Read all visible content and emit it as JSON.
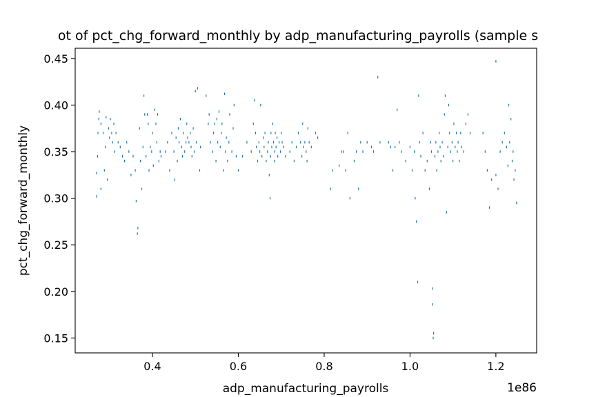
{
  "chart_data": {
    "type": "scatter",
    "title": "ot of pct_chg_forward_monthly by adp_manufacturing_payrolls (sample s",
    "xlabel": "adp_manufacturing_payrolls",
    "ylabel": "pct_chg_forward_monthly",
    "x_offset_label": "1e86",
    "xlim": [
      0.22,
      1.295
    ],
    "ylim": [
      0.134,
      0.461
    ],
    "x_ticks": [
      0.4,
      0.6,
      0.8,
      1.0,
      1.2
    ],
    "x_tick_labels": [
      "0.4",
      "0.6",
      "0.8",
      "1.0",
      "1.2"
    ],
    "y_ticks": [
      0.15,
      0.2,
      0.25,
      0.3,
      0.35,
      0.4,
      0.45
    ],
    "y_tick_labels": [
      "0.15",
      "0.20",
      "0.25",
      "0.30",
      "0.35",
      "0.40",
      "0.45"
    ],
    "grid": false,
    "marker_color": "#1f77b4",
    "series": [
      {
        "points": [
          [
            0.27,
            0.302
          ],
          [
            0.27,
            0.327
          ],
          [
            0.272,
            0.345
          ],
          [
            0.273,
            0.37
          ],
          [
            0.275,
            0.385
          ],
          [
            0.276,
            0.393
          ],
          [
            0.28,
            0.31
          ],
          [
            0.28,
            0.38
          ],
          [
            0.285,
            0.37
          ],
          [
            0.288,
            0.33
          ],
          [
            0.29,
            0.355
          ],
          [
            0.292,
            0.387
          ],
          [
            0.295,
            0.32
          ],
          [
            0.298,
            0.375
          ],
          [
            0.3,
            0.365
          ],
          [
            0.302,
            0.385
          ],
          [
            0.305,
            0.37
          ],
          [
            0.307,
            0.36
          ],
          [
            0.31,
            0.38
          ],
          [
            0.312,
            0.35
          ],
          [
            0.315,
            0.37
          ],
          [
            0.32,
            0.36
          ],
          [
            0.325,
            0.355
          ],
          [
            0.33,
            0.345
          ],
          [
            0.335,
            0.34
          ],
          [
            0.34,
            0.36
          ],
          [
            0.345,
            0.35
          ],
          [
            0.35,
            0.325
          ],
          [
            0.355,
            0.345
          ],
          [
            0.36,
            0.33
          ],
          [
            0.362,
            0.297
          ],
          [
            0.365,
            0.262
          ],
          [
            0.366,
            0.268
          ],
          [
            0.37,
            0.375
          ],
          [
            0.372,
            0.34
          ],
          [
            0.375,
            0.31
          ],
          [
            0.378,
            0.355
          ],
          [
            0.38,
            0.41
          ],
          [
            0.382,
            0.39
          ],
          [
            0.385,
            0.345
          ],
          [
            0.388,
            0.39
          ],
          [
            0.39,
            0.38
          ],
          [
            0.392,
            0.33
          ],
          [
            0.395,
            0.355
          ],
          [
            0.398,
            0.35
          ],
          [
            0.4,
            0.37
          ],
          [
            0.402,
            0.335
          ],
          [
            0.405,
            0.395
          ],
          [
            0.408,
            0.38
          ],
          [
            0.41,
            0.36
          ],
          [
            0.412,
            0.39
          ],
          [
            0.415,
            0.34
          ],
          [
            0.418,
            0.35
          ],
          [
            0.42,
            0.345
          ],
          [
            0.43,
            0.35
          ],
          [
            0.435,
            0.36
          ],
          [
            0.44,
            0.33
          ],
          [
            0.445,
            0.37
          ],
          [
            0.45,
            0.35
          ],
          [
            0.452,
            0.32
          ],
          [
            0.455,
            0.365
          ],
          [
            0.458,
            0.34
          ],
          [
            0.46,
            0.375
          ],
          [
            0.462,
            0.36
          ],
          [
            0.465,
            0.385
          ],
          [
            0.468,
            0.355
          ],
          [
            0.47,
            0.345
          ],
          [
            0.472,
            0.37
          ],
          [
            0.475,
            0.35
          ],
          [
            0.478,
            0.36
          ],
          [
            0.48,
            0.38
          ],
          [
            0.482,
            0.365
          ],
          [
            0.485,
            0.36
          ],
          [
            0.488,
            0.37
          ],
          [
            0.49,
            0.355
          ],
          [
            0.492,
            0.345
          ],
          [
            0.495,
            0.375
          ],
          [
            0.498,
            0.35
          ],
          [
            0.5,
            0.415
          ],
          [
            0.502,
            0.36
          ],
          [
            0.505,
            0.418
          ],
          [
            0.51,
            0.33
          ],
          [
            0.512,
            0.355
          ],
          [
            0.525,
            0.41
          ],
          [
            0.53,
            0.38
          ],
          [
            0.532,
            0.39
          ],
          [
            0.535,
            0.36
          ],
          [
            0.54,
            0.35
          ],
          [
            0.542,
            0.37
          ],
          [
            0.545,
            0.38
          ],
          [
            0.548,
            0.34
          ],
          [
            0.55,
            0.385
          ],
          [
            0.552,
            0.36
          ],
          [
            0.555,
            0.393
          ],
          [
            0.558,
            0.355
          ],
          [
            0.56,
            0.37
          ],
          [
            0.562,
            0.38
          ],
          [
            0.565,
            0.33
          ],
          [
            0.568,
            0.412
          ],
          [
            0.57,
            0.35
          ],
          [
            0.572,
            0.365
          ],
          [
            0.575,
            0.34
          ],
          [
            0.578,
            0.36
          ],
          [
            0.58,
            0.39
          ],
          [
            0.585,
            0.35
          ],
          [
            0.588,
            0.375
          ],
          [
            0.59,
            0.4
          ],
          [
            0.595,
            0.345
          ],
          [
            0.6,
            0.33
          ],
          [
            0.61,
            0.345
          ],
          [
            0.62,
            0.36
          ],
          [
            0.63,
            0.35
          ],
          [
            0.635,
            0.38
          ],
          [
            0.638,
            0.405
          ],
          [
            0.64,
            0.37
          ],
          [
            0.642,
            0.355
          ],
          [
            0.645,
            0.34
          ],
          [
            0.648,
            0.36
          ],
          [
            0.65,
            0.35
          ],
          [
            0.652,
            0.4
          ],
          [
            0.655,
            0.345
          ],
          [
            0.658,
            0.365
          ],
          [
            0.66,
            0.355
          ],
          [
            0.662,
            0.37
          ],
          [
            0.665,
            0.34
          ],
          [
            0.668,
            0.35
          ],
          [
            0.67,
            0.36
          ],
          [
            0.672,
            0.325
          ],
          [
            0.674,
            0.3
          ],
          [
            0.675,
            0.345
          ],
          [
            0.676,
            0.37
          ],
          [
            0.678,
            0.355
          ],
          [
            0.68,
            0.38
          ],
          [
            0.682,
            0.36
          ],
          [
            0.684,
            0.34
          ],
          [
            0.685,
            0.35
          ],
          [
            0.686,
            0.37
          ],
          [
            0.688,
            0.355
          ],
          [
            0.69,
            0.365
          ],
          [
            0.692,
            0.345
          ],
          [
            0.695,
            0.36
          ],
          [
            0.698,
            0.35
          ],
          [
            0.7,
            0.37
          ],
          [
            0.702,
            0.36
          ],
          [
            0.705,
            0.355
          ],
          [
            0.71,
            0.345
          ],
          [
            0.72,
            0.35
          ],
          [
            0.725,
            0.36
          ],
          [
            0.73,
            0.34
          ],
          [
            0.735,
            0.355
          ],
          [
            0.74,
            0.37
          ],
          [
            0.745,
            0.36
          ],
          [
            0.748,
            0.345
          ],
          [
            0.75,
            0.38
          ],
          [
            0.752,
            0.355
          ],
          [
            0.755,
            0.36
          ],
          [
            0.758,
            0.35
          ],
          [
            0.76,
            0.34
          ],
          [
            0.762,
            0.375
          ],
          [
            0.765,
            0.36
          ],
          [
            0.77,
            0.355
          ],
          [
            0.78,
            0.37
          ],
          [
            0.785,
            0.365
          ],
          [
            0.815,
            0.31
          ],
          [
            0.82,
            0.33
          ],
          [
            0.835,
            0.335
          ],
          [
            0.84,
            0.35
          ],
          [
            0.845,
            0.35
          ],
          [
            0.85,
            0.33
          ],
          [
            0.855,
            0.37
          ],
          [
            0.86,
            0.3
          ],
          [
            0.87,
            0.34
          ],
          [
            0.875,
            0.35
          ],
          [
            0.88,
            0.31
          ],
          [
            0.885,
            0.36
          ],
          [
            0.89,
            0.35
          ],
          [
            0.9,
            0.36
          ],
          [
            0.91,
            0.355
          ],
          [
            0.915,
            0.35
          ],
          [
            0.925,
            0.43
          ],
          [
            0.93,
            0.36
          ],
          [
            0.95,
            0.36
          ],
          [
            0.955,
            0.355
          ],
          [
            0.96,
            0.33
          ],
          [
            0.965,
            0.355
          ],
          [
            0.97,
            0.395
          ],
          [
            0.975,
            0.36
          ],
          [
            0.98,
            0.35
          ],
          [
            0.99,
            0.34
          ],
          [
            1.0,
            0.355
          ],
          [
            1.005,
            0.33
          ],
          [
            1.01,
            0.35
          ],
          [
            1.012,
            0.3
          ],
          [
            1.015,
            0.275
          ],
          [
            1.018,
            0.21
          ],
          [
            1.02,
            0.41
          ],
          [
            1.022,
            0.36
          ],
          [
            1.025,
            0.345
          ],
          [
            1.03,
            0.37
          ],
          [
            1.035,
            0.33
          ],
          [
            1.04,
            0.34
          ],
          [
            1.045,
            0.31
          ],
          [
            1.048,
            0.36
          ],
          [
            1.05,
            0.35
          ],
          [
            1.052,
            0.186
          ],
          [
            1.053,
            0.203
          ],
          [
            1.054,
            0.15
          ],
          [
            1.055,
            0.155
          ],
          [
            1.058,
            0.345
          ],
          [
            1.06,
            0.36
          ],
          [
            1.062,
            0.33
          ],
          [
            1.065,
            0.35
          ],
          [
            1.068,
            0.37
          ],
          [
            1.07,
            0.355
          ],
          [
            1.072,
            0.34
          ],
          [
            1.075,
            0.36
          ],
          [
            1.078,
            0.345
          ],
          [
            1.08,
            0.39
          ],
          [
            1.082,
            0.41
          ],
          [
            1.085,
            0.285
          ],
          [
            1.088,
            0.355
          ],
          [
            1.09,
            0.4
          ],
          [
            1.092,
            0.37
          ],
          [
            1.095,
            0.35
          ],
          [
            1.098,
            0.36
          ],
          [
            1.1,
            0.34
          ],
          [
            1.102,
            0.38
          ],
          [
            1.105,
            0.355
          ],
          [
            1.108,
            0.37
          ],
          [
            1.11,
            0.35
          ],
          [
            1.112,
            0.36
          ],
          [
            1.115,
            0.34
          ],
          [
            1.118,
            0.37
          ],
          [
            1.12,
            0.355
          ],
          [
            1.125,
            0.35
          ],
          [
            1.13,
            0.38
          ],
          [
            1.135,
            0.39
          ],
          [
            1.14,
            0.37
          ],
          [
            1.17,
            0.37
          ],
          [
            1.175,
            0.35
          ],
          [
            1.18,
            0.33
          ],
          [
            1.185,
            0.29
          ],
          [
            1.19,
            0.32
          ],
          [
            1.2,
            0.325
          ],
          [
            1.205,
            0.31
          ],
          [
            1.21,
            0.35
          ],
          [
            1.215,
            0.36
          ],
          [
            1.22,
            0.37
          ],
          [
            1.225,
            0.355
          ],
          [
            1.228,
            0.335
          ],
          [
            1.23,
            0.4
          ],
          [
            1.232,
            0.36
          ],
          [
            1.235,
            0.385
          ],
          [
            1.238,
            0.34
          ],
          [
            1.24,
            0.35
          ],
          [
            1.242,
            0.32
          ],
          [
            1.245,
            0.33
          ],
          [
            1.248,
            0.295
          ],
          [
            1.2,
            0.447
          ]
        ]
      }
    ]
  }
}
